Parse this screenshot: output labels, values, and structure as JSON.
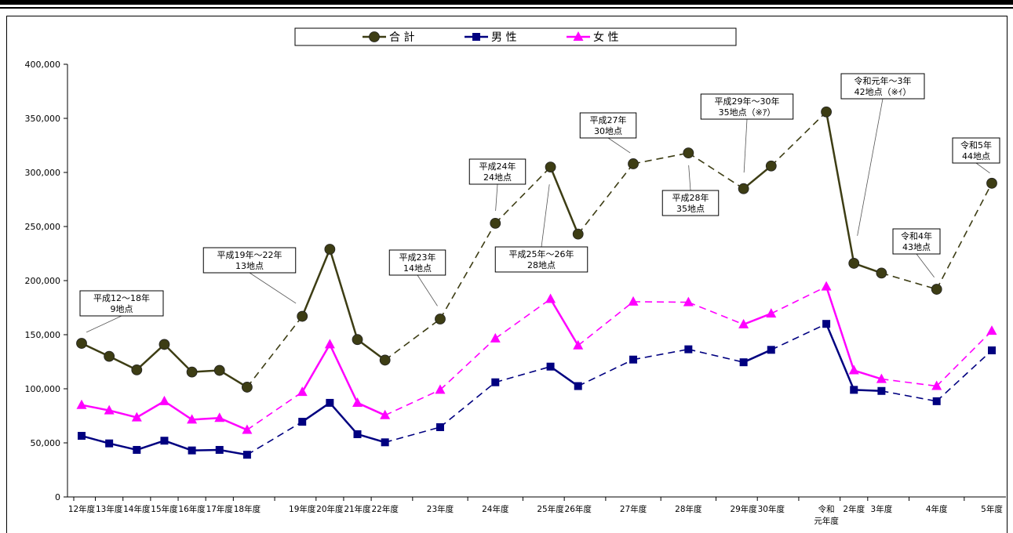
{
  "chart_data": {
    "type": "line",
    "title": "",
    "xlabel": "",
    "ylabel": "",
    "ylim": [
      0,
      400000
    ],
    "yticks": [
      0,
      50000,
      100000,
      150000,
      200000,
      250000,
      300000,
      350000,
      400000
    ],
    "ytick_labels": [
      "0",
      "50,000",
      "100,000",
      "150,000",
      "200,000",
      "250,000",
      "300,000",
      "350,000",
      "400,000"
    ],
    "grid": false,
    "legend_position": "top-center",
    "categories": [
      "12年度",
      "13年度",
      "14年度",
      "15年度",
      "16年度",
      "17年度",
      "18年度",
      "19年度",
      "20年度",
      "21年度",
      "22年度",
      "23年度",
      "24年度",
      "25年度",
      "26年度",
      "27年度",
      "28年度",
      "29年度",
      "30年度",
      "令和元年度",
      "2年度",
      "3年度",
      "4年度",
      "5年度"
    ],
    "category_labels": [
      [
        "12年度"
      ],
      [
        "13年度"
      ],
      [
        "14年度"
      ],
      [
        "15年度"
      ],
      [
        "16年度"
      ],
      [
        "17年度"
      ],
      [
        "18年度"
      ],
      [
        "19年度"
      ],
      [
        "20年度"
      ],
      [
        "21年度"
      ],
      [
        "22年度"
      ],
      [
        "23年度"
      ],
      [
        "24年度"
      ],
      [
        "25年度"
      ],
      [
        "26年度"
      ],
      [
        "27年度"
      ],
      [
        "28年度"
      ],
      [
        "29年度"
      ],
      [
        "30年度"
      ],
      [
        "令和",
        "元年度"
      ],
      [
        "2年度"
      ],
      [
        "3年度"
      ],
      [
        "4年度"
      ],
      [
        "5年度"
      ]
    ],
    "x_positions": [
      0,
      1,
      2,
      3,
      4,
      5,
      6,
      8,
      9,
      10,
      11,
      13,
      15,
      17,
      18,
      20,
      22,
      24,
      25,
      27,
      28,
      29,
      31,
      33
    ],
    "segments": [
      [
        0,
        6
      ],
      [
        7,
        10
      ],
      [
        13,
        14
      ],
      [
        17,
        18
      ],
      [
        19,
        21
      ]
    ],
    "series": [
      {
        "name": "合 計",
        "color": "#3d3d14",
        "marker": "circle",
        "values": [
          142000,
          130000,
          117500,
          141000,
          115500,
          117000,
          101500,
          167000,
          229000,
          145500,
          126500,
          164500,
          253000,
          305000,
          243000,
          308000,
          318000,
          285000,
          306000,
          356000,
          216000,
          207000,
          192000,
          290000
        ]
      },
      {
        "name": "男 性",
        "color": "#000080",
        "marker": "square",
        "values": [
          56500,
          49500,
          43500,
          52000,
          43000,
          43500,
          39000,
          69500,
          87000,
          58000,
          50500,
          64500,
          106000,
          120500,
          102500,
          127000,
          136500,
          124500,
          136000,
          160000,
          99000,
          98000,
          88500,
          135500
        ]
      },
      {
        "name": "女 性",
        "color": "#ff00ff",
        "marker": "triangle",
        "values": [
          85000,
          80000,
          73500,
          88500,
          71500,
          73000,
          62000,
          97000,
          141000,
          87000,
          75500,
          99000,
          146500,
          183000,
          140000,
          180500,
          180000,
          159500,
          169500,
          194500,
          117000,
          109000,
          102500,
          153500
        ]
      }
    ],
    "annotations": [
      {
        "lines": [
          "平成12～18年",
          "9地点"
        ],
        "target": 0
      },
      {
        "lines": [
          "平成19年～22年",
          "13地点"
        ],
        "target": 7
      },
      {
        "lines": [
          "平成23年",
          "14地点"
        ],
        "target": 11
      },
      {
        "lines": [
          "平成24年",
          "24地点"
        ],
        "target": 12
      },
      {
        "lines": [
          "平成25年～26年",
          "28地点"
        ],
        "target": 13
      },
      {
        "lines": [
          "平成27年",
          "30地点"
        ],
        "target": 15
      },
      {
        "lines": [
          "平成28年",
          "35地点"
        ],
        "target": 16
      },
      {
        "lines": [
          "平成29年～30年",
          "35地点（※ｱ）"
        ],
        "target": 17
      },
      {
        "lines": [
          "令和元年～3年",
          "42地点（※ｲ）"
        ],
        "target": 20
      },
      {
        "lines": [
          "令和4年",
          "43地点"
        ],
        "target": 22
      },
      {
        "lines": [
          "令和5年",
          "44地点"
        ],
        "target": 23
      }
    ]
  }
}
